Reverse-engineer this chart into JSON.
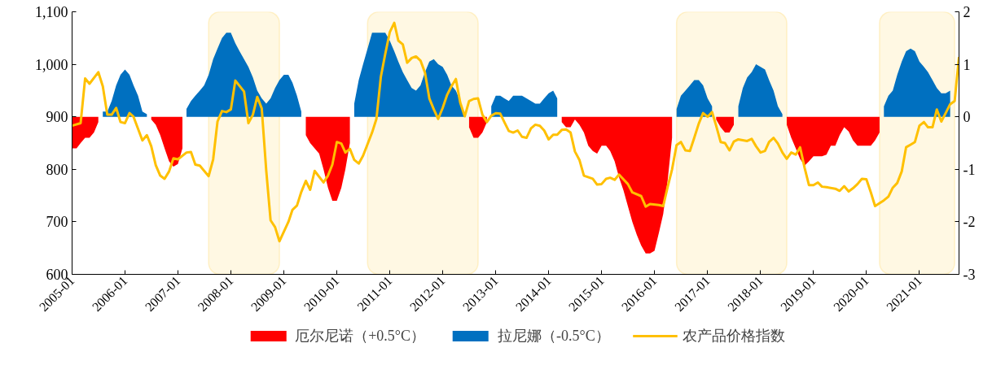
{
  "chart_data": {
    "type": "line",
    "xlim": [
      "2005-01",
      "2021-10"
    ],
    "ylim": [
      600,
      1100
    ],
    "y2lim": [
      -3,
      2
    ],
    "xticks": [
      "2005-01",
      "2006-01",
      "2007-01",
      "2008-01",
      "2009-01",
      "2010-01",
      "2011-01",
      "2012-01",
      "2013-01",
      "2014-01",
      "2015-01",
      "2016-01",
      "2017-01",
      "2018-01",
      "2019-01",
      "2020-01",
      "2021-01"
    ],
    "yticks": [
      {
        "value": 600,
        "label": "600"
      },
      {
        "value": 700,
        "label": "700"
      },
      {
        "value": 800,
        "label": "800"
      },
      {
        "value": 900,
        "label": "900"
      },
      {
        "value": 1000,
        "label": "1,000"
      },
      {
        "value": 1100,
        "label": "1,100"
      }
    ],
    "y2ticks": [
      -3,
      -2,
      -1,
      0,
      1,
      2
    ],
    "grid": false,
    "legend": "bottom",
    "bands": [
      {
        "axis": "x",
        "from": "2007-08",
        "to": "2008-12",
        "color": "#fff2cc"
      },
      {
        "axis": "x",
        "from": "2010-08",
        "to": "2012-09",
        "color": "#fff2cc"
      },
      {
        "axis": "x",
        "from": "2016-06",
        "to": "2018-07",
        "color": "#fff2cc"
      },
      {
        "axis": "x",
        "from": "2020-04",
        "to": "2021-09",
        "color": "#fff2cc"
      }
    ],
    "series": [
      {
        "name": "厄尔尼诺（+0.5°C）",
        "type": "area",
        "axis": "y2",
        "color": "#ff0000",
        "x": [
          "2005-01",
          "2005-02",
          "2005-03",
          "2005-04",
          "2005-05",
          "2005-06",
          "2005-07",
          "2005-08",
          "2006-07",
          "2006-08",
          "2006-09",
          "2006-10",
          "2006-11",
          "2006-12",
          "2007-01",
          "2007-02",
          "2007-03",
          "2009-06",
          "2009-07",
          "2009-08",
          "2009-09",
          "2009-10",
          "2009-11",
          "2009-12",
          "2010-01",
          "2010-02",
          "2010-03",
          "2010-04",
          "2010-05",
          "2012-07",
          "2012-08",
          "2012-09",
          "2012-10",
          "2012-11",
          "2012-12",
          "2014-04",
          "2014-05",
          "2014-06",
          "2014-07",
          "2014-08",
          "2014-09",
          "2014-10",
          "2014-11",
          "2014-12",
          "2015-01",
          "2015-02",
          "2015-03",
          "2015-04",
          "2015-05",
          "2015-06",
          "2015-07",
          "2015-08",
          "2015-09",
          "2015-10",
          "2015-11",
          "2015-12",
          "2016-01",
          "2016-02",
          "2016-03",
          "2016-04",
          "2016-05",
          "2016-06",
          "2017-03",
          "2017-04",
          "2017-05",
          "2017-06",
          "2017-07",
          "2017-08",
          "2018-07",
          "2018-08",
          "2018-09",
          "2018-10",
          "2018-11",
          "2018-12",
          "2019-01",
          "2019-02",
          "2019-03",
          "2019-04",
          "2019-05",
          "2019-06",
          "2019-07",
          "2019-08",
          "2019-09",
          "2019-10",
          "2019-11",
          "2019-12",
          "2020-01",
          "2020-02",
          "2020-03",
          "2020-04"
        ],
        "values": [
          -0.6,
          -0.6,
          -0.5,
          -0.4,
          -0.4,
          -0.3,
          -0.1,
          null,
          -0.05,
          -0.15,
          -0.35,
          -0.6,
          -0.85,
          -0.95,
          -0.9,
          -0.6,
          null,
          -0.35,
          -0.5,
          -0.6,
          -0.7,
          -1.0,
          -1.35,
          -1.6,
          -1.6,
          -1.35,
          -1.0,
          -0.5,
          null,
          -0.2,
          -0.4,
          -0.4,
          -0.3,
          -0.1,
          null,
          -0.1,
          -0.2,
          -0.2,
          -0.05,
          -0.15,
          -0.3,
          -0.55,
          -0.65,
          -0.7,
          -0.55,
          -0.55,
          -0.65,
          -0.85,
          -1.15,
          -1.4,
          -1.7,
          -2.0,
          -2.25,
          -2.45,
          -2.6,
          -2.6,
          -2.55,
          -2.2,
          -1.85,
          -1.2,
          -0.4,
          null,
          -0.05,
          -0.2,
          -0.3,
          -0.3,
          -0.15,
          null,
          -0.15,
          -0.4,
          -0.6,
          -0.8,
          -0.93,
          -0.85,
          -0.75,
          -0.75,
          -0.75,
          -0.72,
          -0.55,
          -0.55,
          -0.35,
          -0.2,
          -0.28,
          -0.45,
          -0.55,
          -0.55,
          -0.55,
          -0.55,
          -0.45,
          -0.3
        ]
      },
      {
        "name": "拉尼娜（-0.5°C）",
        "type": "area",
        "axis": "y2",
        "color": "#0070c0",
        "x": [
          "2005-08",
          "2005-09",
          "2005-10",
          "2005-11",
          "2005-12",
          "2006-01",
          "2006-02",
          "2006-03",
          "2006-04",
          "2006-05",
          "2006-06",
          "2006-07",
          "2007-03",
          "2007-04",
          "2007-05",
          "2007-06",
          "2007-07",
          "2007-08",
          "2007-09",
          "2007-10",
          "2007-11",
          "2007-12",
          "2008-01",
          "2008-02",
          "2008-03",
          "2008-04",
          "2008-05",
          "2008-06",
          "2008-07",
          "2008-08",
          "2008-09",
          "2008-10",
          "2008-11",
          "2008-12",
          "2009-01",
          "2009-02",
          "2009-03",
          "2009-04",
          "2009-05",
          "2009-06",
          "2010-05",
          "2010-06",
          "2010-07",
          "2010-08",
          "2010-09",
          "2010-10",
          "2010-11",
          "2010-12",
          "2011-01",
          "2011-02",
          "2011-03",
          "2011-04",
          "2011-05",
          "2011-06",
          "2011-07",
          "2011-08",
          "2011-09",
          "2011-10",
          "2011-11",
          "2011-12",
          "2012-01",
          "2012-02",
          "2012-03",
          "2012-04",
          "2012-05",
          "2012-06",
          "2012-07",
          "2012-12",
          "2013-01",
          "2013-02",
          "2013-03",
          "2013-04",
          "2013-05",
          "2013-06",
          "2013-07",
          "2013-08",
          "2013-09",
          "2013-10",
          "2013-11",
          "2013-12",
          "2014-01",
          "2014-02",
          "2014-03",
          "2014-04",
          "2016-06",
          "2016-07",
          "2016-08",
          "2016-09",
          "2016-10",
          "2016-11",
          "2016-12",
          "2017-01",
          "2017-02",
          "2017-03",
          "2017-08",
          "2017-09",
          "2017-10",
          "2017-11",
          "2017-12",
          "2018-01",
          "2018-02",
          "2018-03",
          "2018-04",
          "2018-05",
          "2018-06",
          "2018-07",
          "2020-05",
          "2020-06",
          "2020-07",
          "2020-08",
          "2020-09",
          "2020-10",
          "2020-11",
          "2020-12",
          "2021-01",
          "2021-02",
          "2021-03",
          "2021-04",
          "2021-05",
          "2021-06",
          "2021-07",
          "2021-08"
        ],
        "values": [
          0.1,
          0.1,
          0.3,
          0.6,
          0.8,
          0.9,
          0.8,
          0.6,
          0.4,
          0.1,
          0.05,
          null,
          0.15,
          0.3,
          0.4,
          0.5,
          0.6,
          0.8,
          1.1,
          1.3,
          1.5,
          1.6,
          1.6,
          1.4,
          1.25,
          1.1,
          0.95,
          0.75,
          0.5,
          0.35,
          0.25,
          0.35,
          0.55,
          0.7,
          0.8,
          0.8,
          0.65,
          0.4,
          0.1,
          null,
          0.25,
          0.7,
          1.0,
          1.3,
          1.6,
          1.6,
          1.6,
          1.6,
          1.45,
          1.25,
          1.05,
          0.85,
          0.7,
          0.55,
          0.5,
          0.6,
          0.85,
          1.05,
          1.1,
          1.0,
          0.95,
          0.8,
          0.6,
          0.5,
          0.3,
          0.05,
          null,
          0.2,
          0.4,
          0.4,
          0.35,
          0.3,
          0.4,
          0.4,
          0.4,
          0.35,
          0.3,
          0.25,
          0.25,
          0.35,
          0.45,
          0.5,
          0.35,
          null,
          0.15,
          0.4,
          0.5,
          0.6,
          0.7,
          0.7,
          0.6,
          0.35,
          0.2,
          null,
          0.2,
          0.55,
          0.75,
          0.85,
          1.0,
          0.95,
          0.9,
          0.7,
          0.5,
          0.2,
          0.05,
          null,
          0.2,
          0.4,
          0.5,
          0.8,
          1.05,
          1.25,
          1.3,
          1.25,
          1.05,
          0.95,
          0.85,
          0.7,
          0.55,
          0.45,
          0.45,
          0.5
        ]
      },
      {
        "name": "农产品价格指数",
        "type": "line",
        "color": "#ffc000",
        "line_style": "solid",
        "x": [
          "2005-01",
          "2005-03",
          "2005-04",
          "2005-05",
          "2005-07",
          "2005-08",
          "2005-09",
          "2005-10",
          "2005-11",
          "2005-12",
          "2006-01",
          "2006-02",
          "2006-03",
          "2006-05",
          "2006-06",
          "2006-07",
          "2006-08",
          "2006-09",
          "2006-10",
          "2006-11",
          "2006-12",
          "2007-01",
          "2007-03",
          "2007-04",
          "2007-05",
          "2007-06",
          "2007-08",
          "2007-09",
          "2007-10",
          "2007-11",
          "2007-12",
          "2008-01",
          "2008-02",
          "2008-04",
          "2008-05",
          "2008-06",
          "2008-07",
          "2008-08",
          "2008-09",
          "2008-10",
          "2008-11",
          "2008-12",
          "2009-02",
          "2009-03",
          "2009-04",
          "2009-05",
          "2009-06",
          "2009-07",
          "2009-08",
          "2009-10",
          "2009-11",
          "2009-12",
          "2010-01",
          "2010-02",
          "2010-03",
          "2010-04",
          "2010-05",
          "2010-06",
          "2010-07",
          "2010-09",
          "2010-10",
          "2010-11",
          "2010-12",
          "2011-01",
          "2011-02",
          "2011-03",
          "2011-04",
          "2011-05",
          "2011-06",
          "2011-07",
          "2011-08",
          "2011-09",
          "2011-10",
          "2011-11",
          "2011-12",
          "2012-01",
          "2012-02",
          "2012-03",
          "2012-04",
          "2012-05",
          "2012-06",
          "2012-07",
          "2012-08",
          "2012-09",
          "2012-10",
          "2012-11",
          "2012-12",
          "2013-01",
          "2013-02",
          "2013-03",
          "2013-04",
          "2013-05",
          "2013-06",
          "2013-07",
          "2013-08",
          "2013-09",
          "2013-10",
          "2013-11",
          "2013-12",
          "2014-01",
          "2014-02",
          "2014-03",
          "2014-04",
          "2014-05",
          "2014-06",
          "2014-07",
          "2014-08",
          "2014-09",
          "2014-11",
          "2014-12",
          "2015-01",
          "2015-02",
          "2015-03",
          "2015-04",
          "2015-05",
          "2015-07",
          "2015-08",
          "2015-10",
          "2015-11",
          "2015-12",
          "2016-02",
          "2016-03",
          "2016-04",
          "2016-05",
          "2016-06",
          "2016-07",
          "2016-08",
          "2016-09",
          "2016-10",
          "2016-11",
          "2016-12",
          "2017-01",
          "2017-02",
          "2017-03",
          "2017-04",
          "2017-05",
          "2017-06",
          "2017-07",
          "2017-08",
          "2017-10",
          "2017-11",
          "2017-12",
          "2018-01",
          "2018-02",
          "2018-03",
          "2018-04",
          "2018-05",
          "2018-06",
          "2018-07",
          "2018-08",
          "2018-09",
          "2018-10",
          "2018-11",
          "2018-12",
          "2019-01",
          "2019-02",
          "2019-03",
          "2019-04",
          "2019-06",
          "2019-07",
          "2019-08",
          "2019-09",
          "2019-10",
          "2019-11",
          "2019-12",
          "2020-01",
          "2020-02",
          "2020-03",
          "2020-05",
          "2020-06",
          "2020-07",
          "2020-08",
          "2020-09",
          "2020-10",
          "2020-11",
          "2020-12",
          "2021-01",
          "2021-02",
          "2021-03",
          "2021-04",
          "2021-05",
          "2021-06",
          "2021-07",
          "2021-08",
          "2021-09",
          "2021-10"
        ],
        "values": [
          883,
          888,
          973,
          963,
          985,
          958,
          904,
          904,
          917,
          890,
          888,
          907,
          900,
          855,
          865,
          844,
          808,
          788,
          782,
          796,
          821,
          819,
          832,
          833,
          809,
          807,
          787,
          819,
          891,
          911,
          909,
          914,
          969,
          948,
          888,
          904,
          938,
          916,
          798,
          703,
          690,
          663,
          700,
          723,
          731,
          757,
          778,
          761,
          797,
          775,
          788,
          809,
          852,
          849,
          832,
          839,
          818,
          811,
          826,
          870,
          896,
          977,
          1020,
          1061,
          1079,
          1045,
          1038,
          1003,
          1012,
          1015,
          1007,
          984,
          935,
          914,
          896,
          917,
          942,
          958,
          972,
          927,
          901,
          930,
          934,
          935,
          904,
          890,
          902,
          907,
          906,
          890,
          873,
          870,
          874,
          862,
          860,
          878,
          885,
          883,
          874,
          857,
          866,
          866,
          875,
          876,
          870,
          834,
          818,
          788,
          782,
          771,
          772,
          782,
          784,
          780,
          790,
          772,
          756,
          749,
          729,
          734,
          732,
          730,
          767,
          800,
          846,
          852,
          836,
          835,
          860,
          887,
          907,
          900,
          909,
          883,
          852,
          850,
          836,
          853,
          857,
          854,
          858,
          844,
          832,
          835,
          852,
          860,
          849,
          832,
          820,
          832,
          828,
          842,
          803,
          770,
          770,
          775,
          767,
          766,
          763,
          759,
          768,
          758,
          764,
          772,
          782,
          781,
          756,
          730,
          741,
          748,
          765,
          774,
          796,
          842,
          847,
          852,
          883,
          890,
          880,
          880,
          914,
          891,
          907,
          924,
          930,
          1014
        ]
      }
    ]
  }
}
